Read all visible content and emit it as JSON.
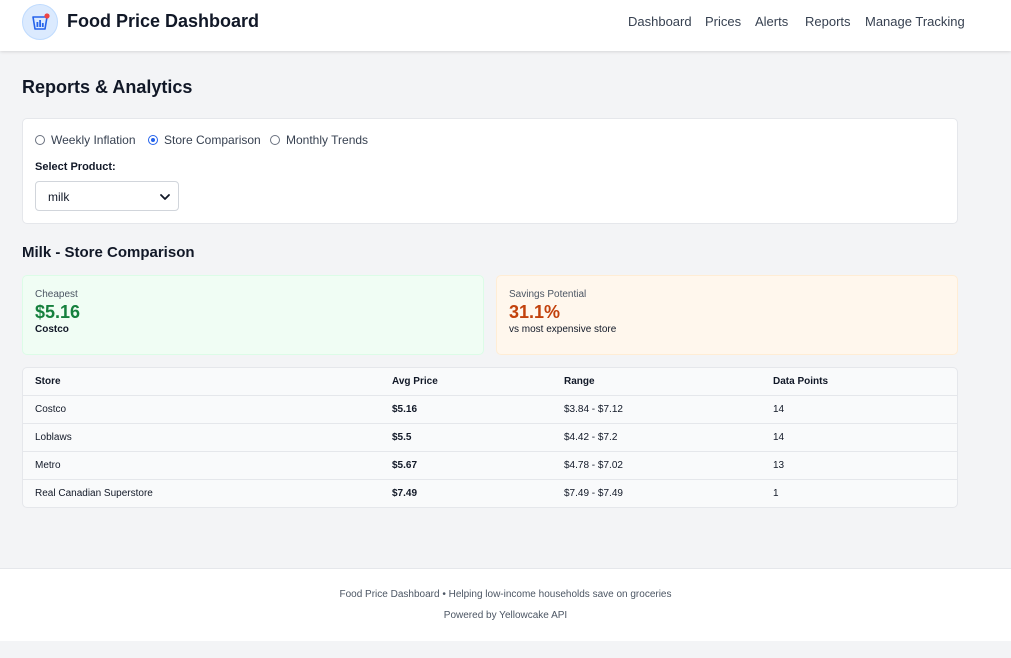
{
  "header": {
    "title": "Food Price Dashboard",
    "nav": [
      "Dashboard",
      "Prices",
      "Alerts",
      "Reports",
      "Manage Tracking"
    ]
  },
  "page": {
    "title": "Reports & Analytics"
  },
  "controls": {
    "report_types": [
      {
        "label": "Weekly Inflation",
        "checked": false
      },
      {
        "label": "Store Comparison",
        "checked": true
      },
      {
        "label": "Monthly Trends",
        "checked": false
      }
    ],
    "select_label": "Select Product:",
    "selected_product": "milk"
  },
  "section": {
    "title": "Milk - Store Comparison"
  },
  "stats": {
    "cheapest": {
      "label": "Cheapest",
      "value": "$5.16",
      "sub": "Costco",
      "color": "#15803d"
    },
    "savings": {
      "label": "Savings Potential",
      "value": "31.1%",
      "sub": "vs most expensive store",
      "color": "#c2410c"
    }
  },
  "table": {
    "headers": [
      "Store",
      "Avg Price",
      "Range",
      "Data Points"
    ],
    "rows": [
      [
        "Costco",
        "$5.16",
        "$3.84 - $7.12",
        "14"
      ],
      [
        "Loblaws",
        "$5.5",
        "$4.42 - $7.2",
        "14"
      ],
      [
        "Metro",
        "$5.67",
        "$4.78 - $7.02",
        "13"
      ],
      [
        "Real Canadian Superstore",
        "$7.49",
        "$7.49 - $7.49",
        "1"
      ]
    ]
  },
  "footer": {
    "line1": "Food Price Dashboard • Helping low-income households save on groceries",
    "line2": "Powered by Yellowcake API"
  },
  "colors": {
    "accent": "#2563eb",
    "success": "#15803d",
    "warning": "#c2410c",
    "logo_badge": "#ef4444"
  },
  "icons": {
    "logo": "chart-basket-icon",
    "select": "chevron-down-icon"
  }
}
